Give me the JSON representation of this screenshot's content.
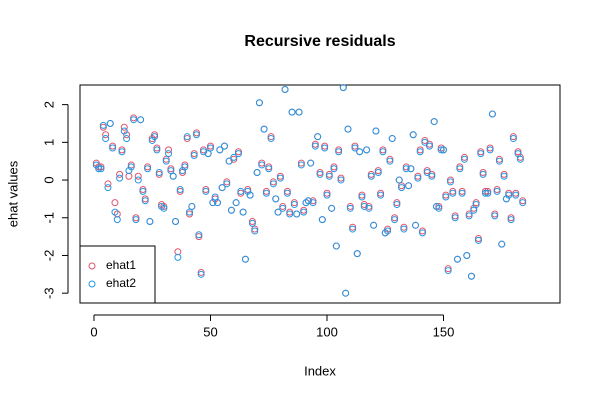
{
  "chart_data": {
    "type": "scatter",
    "title": "Recursive residuals",
    "x_label": "Index",
    "y_label": "ehat values",
    "x": [
      1,
      2,
      3,
      4,
      5,
      6,
      7,
      8,
      9,
      10,
      11,
      12,
      13,
      14,
      15,
      16,
      17,
      18,
      19,
      20,
      21,
      22,
      23,
      24,
      25,
      26,
      27,
      28,
      29,
      30,
      31,
      32,
      33,
      34,
      35,
      36,
      37,
      38,
      39,
      40,
      41,
      42,
      43,
      44,
      45,
      46,
      47,
      48,
      49,
      50,
      51,
      52,
      53,
      54,
      55,
      56,
      57,
      58,
      59,
      60,
      61,
      62,
      63,
      64,
      65,
      66,
      67,
      68,
      69,
      70,
      71,
      72,
      73,
      74,
      75,
      76,
      77,
      78,
      79,
      80,
      81,
      82,
      83,
      84,
      85,
      86,
      87,
      88,
      89,
      90,
      91,
      92,
      93,
      94,
      95,
      96,
      97,
      98,
      99,
      100,
      101,
      102,
      103,
      104,
      105,
      106,
      107,
      108,
      109,
      110,
      111,
      112,
      113,
      114,
      115,
      116,
      117,
      118,
      119,
      120,
      121,
      122,
      123,
      124,
      125,
      126,
      127,
      128,
      129,
      130,
      131,
      132,
      133,
      134,
      135,
      136,
      137,
      138,
      139,
      140,
      141,
      142,
      143,
      144,
      145,
      146,
      147,
      148,
      149,
      150,
      151,
      152,
      153,
      154,
      155,
      156,
      157,
      158,
      159,
      160,
      161,
      162,
      163,
      164,
      165,
      166,
      167,
      168,
      169,
      170,
      171,
      172,
      173,
      174,
      175,
      176,
      177,
      178,
      179,
      180,
      181,
      182,
      183,
      184
    ],
    "series": [
      {
        "name": "ehat1",
        "color": "#df536b",
        "values": [
          0.45,
          0.35,
          0.35,
          1.4,
          1.2,
          -0.1,
          1.5,
          0.9,
          -0.6,
          -0.9,
          0.15,
          0.8,
          1.4,
          1.2,
          0.1,
          0.4,
          1.65,
          -1.0,
          0.1,
          1.6,
          -0.25,
          -0.5,
          0.35,
          -1.1,
          1.1,
          1.2,
          0.85,
          0.15,
          -0.65,
          -0.7,
          0.55,
          0.8,
          0.3,
          0.1,
          -1.1,
          -1.9,
          -0.3,
          0.2,
          0.4,
          1.1,
          -0.9,
          -0.7,
          0.7,
          1.25,
          -1.5,
          -2.45,
          0.8,
          -0.25,
          0.7,
          0.9,
          -0.6,
          -0.5,
          -0.6,
          0.8,
          -0.2,
          0.9,
          -0.05,
          0.5,
          -0.8,
          0.55,
          -0.6,
          0.75,
          -0.35,
          -0.85,
          -2.1,
          -0.25,
          -0.4,
          -1.1,
          -1.3,
          0.2,
          2.05,
          0.45,
          1.35,
          -0.3,
          0.35,
          1.15,
          -0.05,
          -0.5,
          -0.85,
          0.1,
          -0.7,
          2.4,
          -0.3,
          -0.85,
          1.8,
          -0.6,
          -0.9,
          1.8,
          0.45,
          -0.8,
          -0.6,
          -0.55,
          0.45,
          -0.55,
          0.95,
          1.15,
          0.2,
          -1.05,
          0.9,
          -0.35,
          0.15,
          -0.75,
          0.35,
          -1.75,
          0.8,
          0.05,
          2.45,
          -3.0,
          1.35,
          -0.7,
          -1.25,
          0.9,
          -1.95,
          0.75,
          -0.4,
          -0.65,
          0.8,
          -0.7,
          0.15,
          -1.2,
          1.3,
          0.25,
          -0.35,
          0.8,
          -1.4,
          -1.3,
          0.55,
          1.1,
          -1.0,
          -0.6,
          0.0,
          -0.15,
          -1.25,
          0.35,
          -0.15,
          0.3,
          1.2,
          -1.2,
          0.1,
          0.8,
          -1.35,
          1.05,
          0.25,
          0.95,
          0.15,
          1.55,
          -0.7,
          -0.7,
          0.85,
          0.8,
          -0.4,
          -2.35,
          0.0,
          -0.3,
          -0.95,
          -2.1,
          0.35,
          -0.3,
          0.6,
          -2.0,
          -0.9,
          -2.55,
          -0.75,
          -0.6,
          -1.55,
          0.75,
          0.2,
          -0.3,
          -0.3,
          0.85,
          1.75,
          -0.9,
          -0.25,
          0.55,
          -1.7,
          0.15,
          -0.5,
          -0.35,
          -1.0,
          1.15,
          -0.35,
          0.75,
          0.6,
          -0.55
        ]
      },
      {
        "name": "ehat2",
        "color": "#2297e6",
        "values": [
          0.4,
          0.3,
          0.3,
          1.45,
          1.1,
          -0.2,
          1.5,
          0.85,
          -0.85,
          -1.05,
          0.05,
          0.75,
          1.3,
          1.1,
          0.25,
          0.35,
          1.6,
          -1.05,
          0.0,
          1.6,
          -0.3,
          -0.55,
          0.3,
          -1.1,
          1.05,
          1.15,
          0.8,
          0.2,
          -0.7,
          -0.75,
          0.5,
          0.7,
          0.25,
          0.1,
          -1.1,
          -2.05,
          -0.25,
          0.25,
          0.35,
          1.15,
          -0.85,
          -0.7,
          0.65,
          1.2,
          -1.45,
          -2.5,
          0.75,
          -0.3,
          0.7,
          0.85,
          -0.6,
          -0.45,
          -0.6,
          0.8,
          -0.2,
          0.9,
          -0.1,
          0.5,
          -0.8,
          0.6,
          -0.6,
          0.7,
          -0.3,
          -0.85,
          -2.1,
          -0.3,
          -0.4,
          -1.15,
          -1.35,
          0.2,
          2.05,
          0.4,
          1.35,
          -0.35,
          0.3,
          1.1,
          -0.1,
          -0.5,
          -0.85,
          0.05,
          -0.75,
          2.4,
          -0.35,
          -0.9,
          1.8,
          -0.65,
          -0.9,
          1.8,
          0.4,
          -0.85,
          -0.6,
          -0.55,
          0.45,
          -0.6,
          0.9,
          1.15,
          0.15,
          -1.05,
          0.85,
          -0.4,
          0.1,
          -0.75,
          0.3,
          -1.75,
          0.75,
          0.0,
          2.45,
          -3.0,
          1.35,
          -0.75,
          -1.3,
          0.85,
          -1.95,
          0.75,
          -0.45,
          -0.7,
          0.8,
          -0.75,
          0.1,
          -1.2,
          1.3,
          0.2,
          -0.4,
          0.75,
          -1.4,
          -1.35,
          0.5,
          1.1,
          -1.05,
          -0.65,
          0.0,
          -0.2,
          -1.3,
          0.3,
          -0.15,
          0.3,
          1.2,
          -1.2,
          0.05,
          0.75,
          -1.4,
          1.0,
          0.2,
          0.9,
          0.1,
          1.55,
          -0.7,
          -0.75,
          0.8,
          0.8,
          -0.45,
          -2.4,
          -0.05,
          -0.35,
          -1.0,
          -2.1,
          0.3,
          -0.35,
          0.55,
          -2.0,
          -0.95,
          -2.55,
          -0.8,
          -0.65,
          -1.6,
          0.7,
          0.15,
          -0.35,
          -0.35,
          0.8,
          1.75,
          -0.95,
          -0.3,
          0.5,
          -1.7,
          0.1,
          -0.5,
          -0.4,
          -1.05,
          1.1,
          -0.4,
          0.7,
          0.55,
          -0.6
        ]
      }
    ],
    "xlim": [
      -6,
      200
    ],
    "ylim": [
      -3.26,
      2.52
    ],
    "xticks": [
      0,
      50,
      100,
      150
    ],
    "yticks": [
      -3,
      -2,
      -1,
      0,
      1,
      2
    ],
    "legend": "bottomleft"
  }
}
